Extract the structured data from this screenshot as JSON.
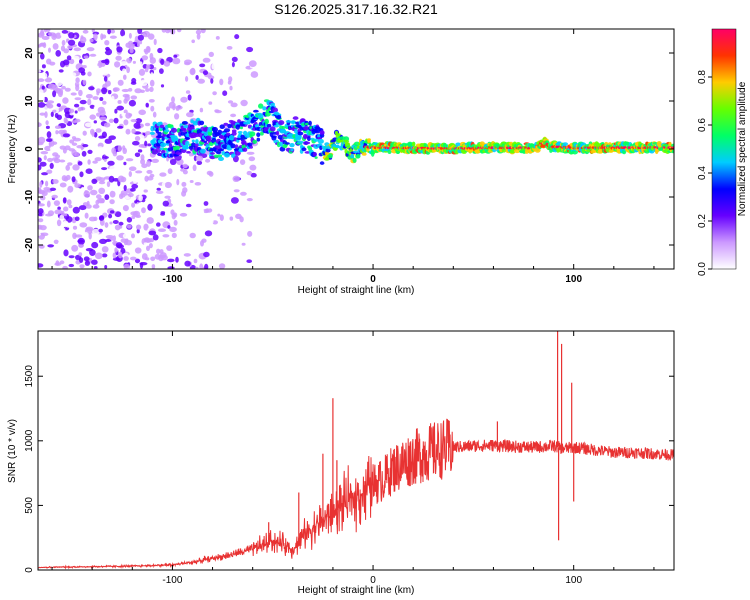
{
  "title": "S126.2025.317.16.32.R21",
  "chart_data": [
    {
      "type": "heatmap",
      "name": "spectrogram",
      "xlabel": "Height of straight line (km)",
      "ylabel": "Frequency (Hz)",
      "xlim": [
        -167,
        150
      ],
      "ylim": [
        -25,
        25
      ],
      "x_ticks": [
        "-100",
        "0",
        "100"
      ],
      "x_tick_values": [
        -100,
        0,
        100
      ],
      "y_ticks": [
        "20",
        "10",
        "0",
        "-10",
        "-20"
      ],
      "y_tick_values": [
        20,
        10,
        0,
        -10,
        -20
      ],
      "colorbar": {
        "label": "Normalized spectral amplitude",
        "ticks": [
          "0.0",
          "0.2",
          "0.4",
          "0.6",
          "0.8"
        ],
        "tick_values": [
          0.0,
          0.2,
          0.4,
          0.6,
          0.8
        ],
        "range": [
          0,
          1
        ],
        "colors": [
          "#ffffff",
          "#cc99ff",
          "#6600ff",
          "#0000ff",
          "#00ccff",
          "#00ff66",
          "#66ff00",
          "#ffcc00",
          "#ff3300",
          "#ff0066"
        ]
      },
      "ridge": {
        "x": [
          -100,
          -90,
          -80,
          -70,
          -60,
          -52,
          -45,
          -35,
          -27,
          -22,
          -18,
          -14,
          -10,
          -5,
          0,
          20,
          40,
          60,
          80,
          86,
          88,
          90,
          100,
          120,
          150
        ],
        "freq": [
          2,
          3,
          1,
          2,
          4,
          7,
          3,
          3,
          1,
          -1,
          2,
          1,
          -1,
          0.5,
          0.3,
          0.2,
          0.1,
          0.3,
          0.2,
          1.5,
          0.2,
          0.5,
          0.2,
          0.3,
          0.3
        ]
      }
    },
    {
      "type": "line",
      "name": "snr",
      "xlabel": "Height of straight line (km)",
      "ylabel": "SNR (10 * v/v)",
      "xlim": [
        -167,
        150
      ],
      "ylim": [
        0,
        1850
      ],
      "x_ticks": [
        "-100",
        "0",
        "100"
      ],
      "x_tick_values": [
        -100,
        0,
        100
      ],
      "y_ticks": [
        "0",
        "500",
        "1000",
        "1500"
      ],
      "y_tick_values": [
        0,
        500,
        1000,
        1500
      ],
      "color": "#e83232",
      "envelope": {
        "x": [
          -167,
          -120,
          -100,
          -90,
          -80,
          -70,
          -60,
          -50,
          -45,
          -40,
          -35,
          -30,
          -25,
          -20,
          -15,
          -10,
          -5,
          0,
          5,
          10,
          20,
          30,
          40,
          50,
          60,
          70,
          80,
          90,
          95,
          100,
          110,
          120,
          130,
          140,
          150
        ],
        "y": [
          20,
          30,
          40,
          60,
          90,
          120,
          160,
          230,
          200,
          160,
          260,
          330,
          380,
          440,
          500,
          560,
          600,
          660,
          700,
          780,
          870,
          920,
          950,
          960,
          965,
          955,
          950,
          960,
          940,
          950,
          930,
          910,
          910,
          900,
          890
        ]
      },
      "spikes": [
        {
          "x": -84,
          "y": 110
        },
        {
          "x": -52,
          "y": 370
        },
        {
          "x": -37,
          "y": 600
        },
        {
          "x": -25,
          "y": 900
        },
        {
          "x": -20,
          "y": 1330
        },
        {
          "x": -18,
          "y": 850
        },
        {
          "x": 62,
          "y": 1150
        },
        {
          "x": 92,
          "y": 1850
        },
        {
          "x": 92.5,
          "y": 230
        },
        {
          "x": 94,
          "y": 1750
        },
        {
          "x": 99,
          "y": 1450
        },
        {
          "x": 100,
          "y": 530
        }
      ]
    }
  ]
}
